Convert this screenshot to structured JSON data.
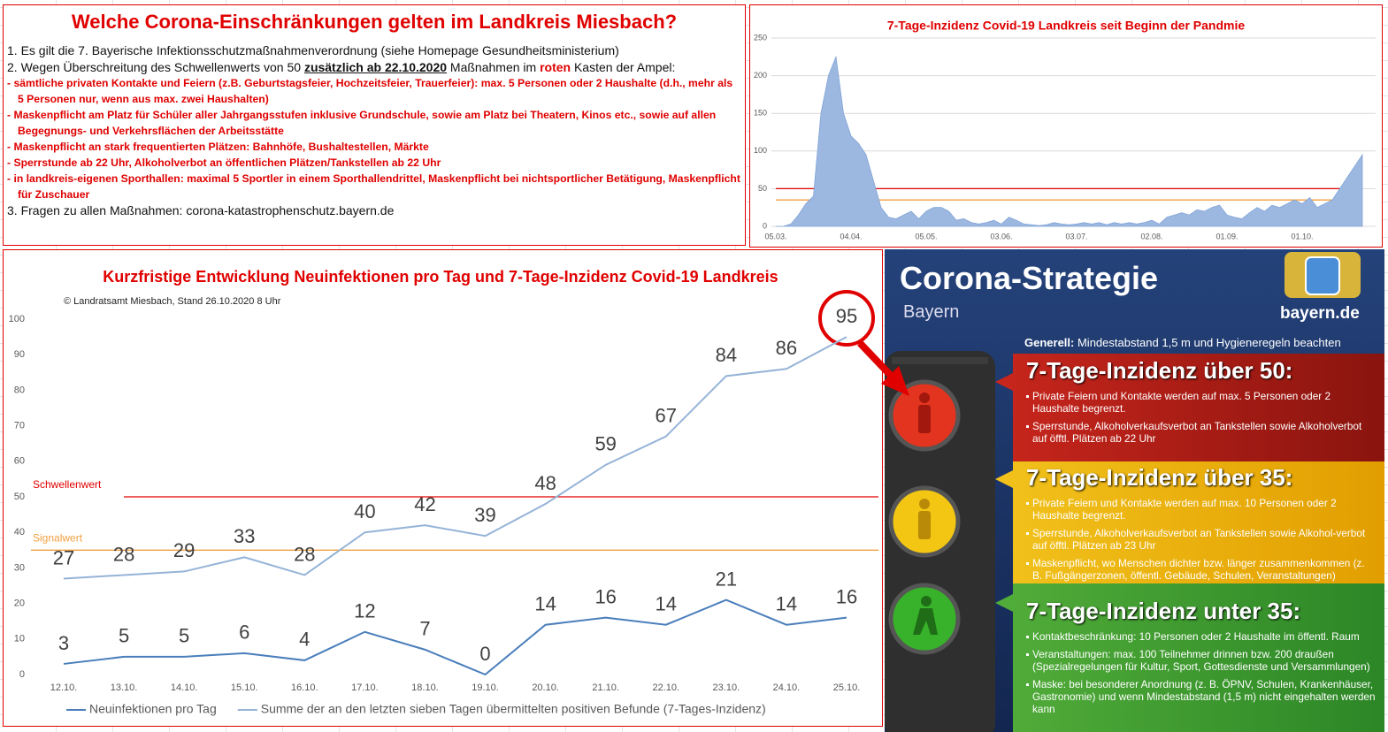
{
  "info_box": {
    "title": "Welche Corona-Einschränkungen gelten im Landkreis Miesbach?",
    "item1": "1. Es gilt die 7. Bayerische Infektionsschutzmaßnahmenverordnung (siehe Homepage Gesundheitsministerium)",
    "item2_parts": [
      "2. Wegen Überschreitung des Schwellenwerts von 50 ",
      "zusätzlich ab 22.10.2020",
      " Maßnahmen im ",
      "roten",
      " Kasten der Ampel:"
    ],
    "measures": [
      "- sämtliche privaten Kontakte und Feiern (z.B. Geburtstagsfeier, Hochzeitsfeier, Trauerfeier): max. 5 Personen oder 2 Haushalte (d.h., mehr als 5 Personen nur, wenn aus max. zwei Haushalten)",
      "- Maskenpflicht am Platz für Schüler aller Jahrgangsstufen inklusive Grundschule, sowie am Platz bei Theatern, Kinos etc., sowie auf allen Begegnungs- und Verkehrsflächen der Arbeitsstätte",
      "- Maskenpflicht an stark frequentierten Plätzen: Bahnhöfe, Bushaltestellen, Märkte",
      "- Sperrstunde ab 22 Uhr, Alkoholverbot an öffentlichen Plätzen/Tankstellen ab 22 Uhr",
      "- in landkreis-eigenen Sporthallen: maximal 5 Sportler in einem Sporthallendrittel, Maskenpflicht bei nichtsportlicher Betätigung, Maskenpflicht für Zuschauer"
    ],
    "item3": "3. Fragen zu allen Maßnahmen: corona-katastrophenschutz.bayern.de"
  },
  "chart_data": [
    {
      "type": "area",
      "title": "7-Tage-Inzidenz Covid-19 Landkreis seit Beginn der Pandmie",
      "categories": [
        "05.03.",
        null,
        null,
        null,
        null,
        null,
        null,
        null,
        null,
        null,
        "04.04.",
        null,
        null,
        null,
        null,
        null,
        null,
        null,
        null,
        null,
        "05.05.",
        null,
        null,
        null,
        null,
        null,
        null,
        null,
        null,
        null,
        "03.06.",
        null,
        null,
        null,
        null,
        null,
        null,
        null,
        null,
        null,
        "03.07.",
        null,
        null,
        null,
        null,
        null,
        null,
        null,
        null,
        null,
        "02.08.",
        null,
        null,
        null,
        null,
        null,
        null,
        null,
        null,
        null,
        "01.09.",
        null,
        null,
        null,
        null,
        null,
        null,
        null,
        null,
        null,
        "01.10.",
        null,
        null,
        null,
        null,
        null,
        null,
        null,
        null
      ],
      "values": [
        0,
        0,
        3,
        15,
        30,
        40,
        150,
        200,
        225,
        150,
        120,
        110,
        95,
        60,
        25,
        12,
        10,
        15,
        20,
        10,
        20,
        25,
        25,
        20,
        8,
        10,
        5,
        3,
        5,
        8,
        3,
        12,
        8,
        3,
        2,
        1,
        2,
        5,
        3,
        2,
        3,
        5,
        3,
        5,
        2,
        5,
        3,
        5,
        3,
        5,
        8,
        3,
        12,
        15,
        18,
        15,
        22,
        20,
        25,
        28,
        15,
        12,
        10,
        18,
        25,
        20,
        28,
        25,
        30,
        35,
        30,
        38,
        25,
        30,
        35,
        50,
        65,
        80,
        95
      ],
      "color": "#9db8e0",
      "ylim": [
        0,
        250
      ],
      "yticks": [
        0,
        50,
        100,
        150,
        200,
        250
      ],
      "grid": true,
      "reference_lines": [
        {
          "value": 50,
          "color": "#e00000"
        },
        {
          "value": 35,
          "color": "#f0a040"
        }
      ]
    },
    {
      "type": "line",
      "title": "Kurzfristige Entwicklung Neuinfektionen pro Tag und 7-Tage-Inzidenz Covid-19 Landkreis",
      "subtitle": "© Landratsamt Miesbach, Stand 26.10.2020 8 Uhr",
      "categories": [
        "12.10.",
        "13.10.",
        "14.10.",
        "15.10.",
        "16.10.",
        "17.10.",
        "18.10.",
        "19.10.",
        "20.10.",
        "21.10.",
        "22.10.",
        "23.10.",
        "24.10.",
        "25.10."
      ],
      "series": [
        {
          "name": "Neuinfektionen pro Tag",
          "color": "#4a7ebb",
          "values": [
            3,
            5,
            5,
            6,
            4,
            12,
            7,
            0,
            14,
            16,
            14,
            21,
            14,
            16
          ]
        },
        {
          "name": "Summe der an den letzten sieben Tagen übermittelten positiven Befunde (7-Tages-Inzidenz)",
          "color": "#95b3d7",
          "values": [
            27,
            28,
            29,
            33,
            28,
            40,
            42,
            39,
            48,
            59,
            67,
            84,
            86,
            95
          ]
        }
      ],
      "ylim": [
        0,
        100
      ],
      "yticks": [
        0,
        10,
        20,
        30,
        40,
        50,
        60,
        70,
        80,
        90,
        100
      ],
      "grid": false,
      "data_labels": true,
      "legend": "bottom",
      "reference_lines": [
        {
          "label": "Schwellenwert",
          "value": 50,
          "color": "#e00000"
        },
        {
          "label": "Signalwert",
          "value": 35,
          "color": "#f0a040"
        }
      ]
    }
  ],
  "strategy": {
    "title": "Corona-Strategie",
    "subtitle": "Bayern",
    "site": "bayern.de",
    "general_label": "Generell:",
    "general_text": " Mindestabstand 1,5 m und Hygieneregeln beachten",
    "levels": [
      {
        "heading": "7-Tage-Inzidenz über 50:",
        "items": [
          "Private Feiern und Kontakte werden auf max. 5 Personen oder 2 Haushalte begrenzt.",
          "Sperrstunde, Alkoholverkaufsverbot an Tankstellen sowie Alkoholverbot auf öfftl. Plätzen ab 22 Uhr"
        ]
      },
      {
        "heading": "7-Tage-Inzidenz über 35:",
        "items": [
          "Private Feiern und Kontakte werden auf max. 10 Personen oder 2 Haushalte begrenzt.",
          "Sperrstunde, Alkoholverkaufsverbot an Tankstellen sowie Alkohol-verbot auf öfftl. Plätzen ab 23 Uhr",
          "Maskenpflicht, wo Menschen dichter bzw. länger zusammenkommen (z. B. Fußgängerzonen, öffentl. Gebäude, Schulen, Veranstaltungen)"
        ]
      },
      {
        "heading": "7-Tage-Inzidenz unter 35:",
        "items": [
          "Kontaktbeschränkung: 10 Personen oder 2 Haushalte im öffentl. Raum",
          "Veranstaltungen: max. 100 Teilnehmer drinnen bzw. 200 draußen (Spezialregelungen für Kultur, Sport, Gottesdienste und Versammlungen)",
          "Maske: bei besonderer Anordnung (z. B. ÖPNV, Schulen, Krankenhäuser, Gastronomie) und wenn Mindestabstand (1,5 m) nicht eingehalten werden kann"
        ]
      }
    ]
  }
}
